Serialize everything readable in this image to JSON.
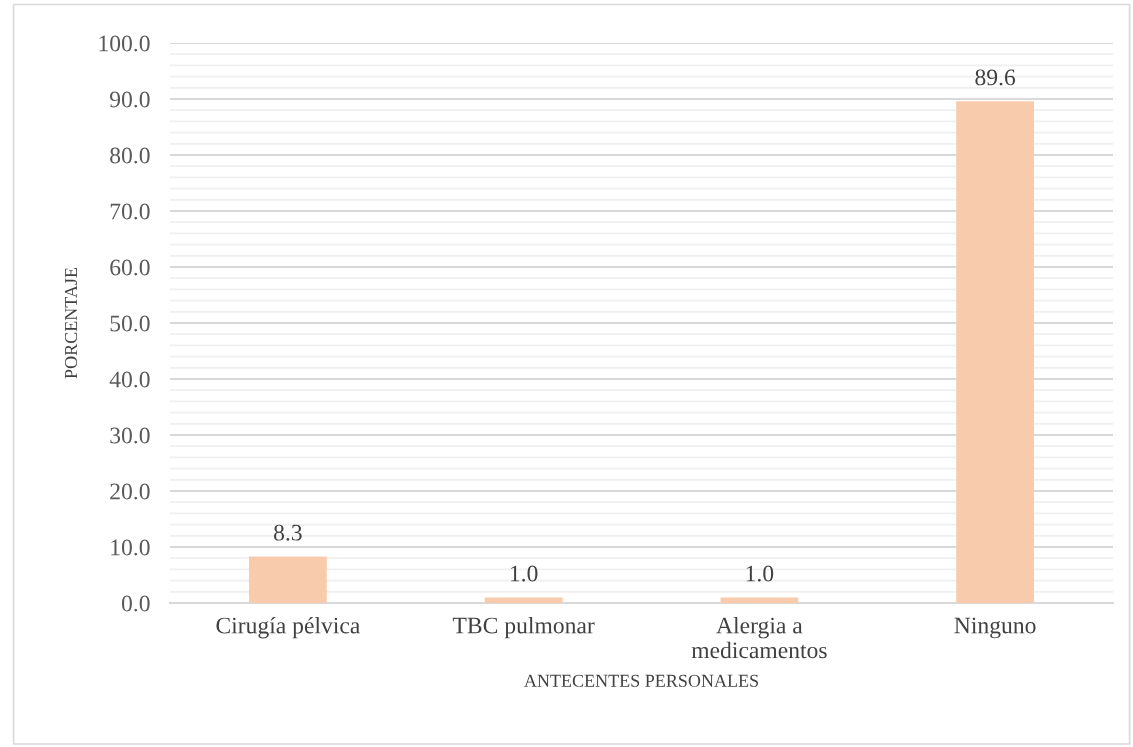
{
  "chart_data": {
    "type": "bar",
    "xlabel": "ANTECENTES PERSONALES",
    "ylabel": "PORCENTAJE",
    "categories": [
      "Cirugía pélvica",
      "TBC pulmonar",
      "Alergia a\nmedicamentos",
      "Ninguno"
    ],
    "values": [
      8.3,
      1.0,
      1.0,
      89.6
    ],
    "color": "#f8cbad",
    "value_labels": [
      "8.3",
      "1.0",
      "1.0",
      "89.6"
    ],
    "ylim": [
      0,
      100
    ],
    "yticks": [
      {
        "value": 0,
        "label": "0.0"
      },
      {
        "value": 2,
        "label": null
      },
      {
        "value": 4,
        "label": null
      },
      {
        "value": 6,
        "label": null
      },
      {
        "value": 8,
        "label": null
      },
      {
        "value": 10,
        "label": "10.0"
      },
      {
        "value": 12,
        "label": null
      },
      {
        "value": 14,
        "label": null
      },
      {
        "value": 16,
        "label": null
      },
      {
        "value": 18,
        "label": null
      },
      {
        "value": 20,
        "label": "20.0"
      },
      {
        "value": 22,
        "label": null
      },
      {
        "value": 24,
        "label": null
      },
      {
        "value": 26,
        "label": null
      },
      {
        "value": 28,
        "label": null
      },
      {
        "value": 30,
        "label": "30.0"
      },
      {
        "value": 32,
        "label": null
      },
      {
        "value": 34,
        "label": null
      },
      {
        "value": 36,
        "label": null
      },
      {
        "value": 38,
        "label": null
      },
      {
        "value": 40,
        "label": "40.0"
      },
      {
        "value": 42,
        "label": null
      },
      {
        "value": 44,
        "label": null
      },
      {
        "value": 46,
        "label": null
      },
      {
        "value": 48,
        "label": null
      },
      {
        "value": 50,
        "label": "50.0"
      },
      {
        "value": 52,
        "label": null
      },
      {
        "value": 54,
        "label": null
      },
      {
        "value": 56,
        "label": null
      },
      {
        "value": 58,
        "label": null
      },
      {
        "value": 60,
        "label": "60.0"
      },
      {
        "value": 62,
        "label": null
      },
      {
        "value": 64,
        "label": null
      },
      {
        "value": 66,
        "label": null
      },
      {
        "value": 68,
        "label": null
      },
      {
        "value": 70,
        "label": "70.0"
      },
      {
        "value": 72,
        "label": null
      },
      {
        "value": 74,
        "label": null
      },
      {
        "value": 76,
        "label": null
      },
      {
        "value": 78,
        "label": null
      },
      {
        "value": 80,
        "label": "80.0"
      },
      {
        "value": 82,
        "label": null
      },
      {
        "value": 84,
        "label": null
      },
      {
        "value": 86,
        "label": null
      },
      {
        "value": 88,
        "label": null
      },
      {
        "value": 90,
        "label": "90.0"
      },
      {
        "value": 92,
        "label": null
      },
      {
        "value": 94,
        "label": null
      },
      {
        "value": 96,
        "label": null
      },
      {
        "value": 98,
        "label": null
      },
      {
        "value": 100,
        "label": "100.0"
      }
    ],
    "grid": "y"
  }
}
